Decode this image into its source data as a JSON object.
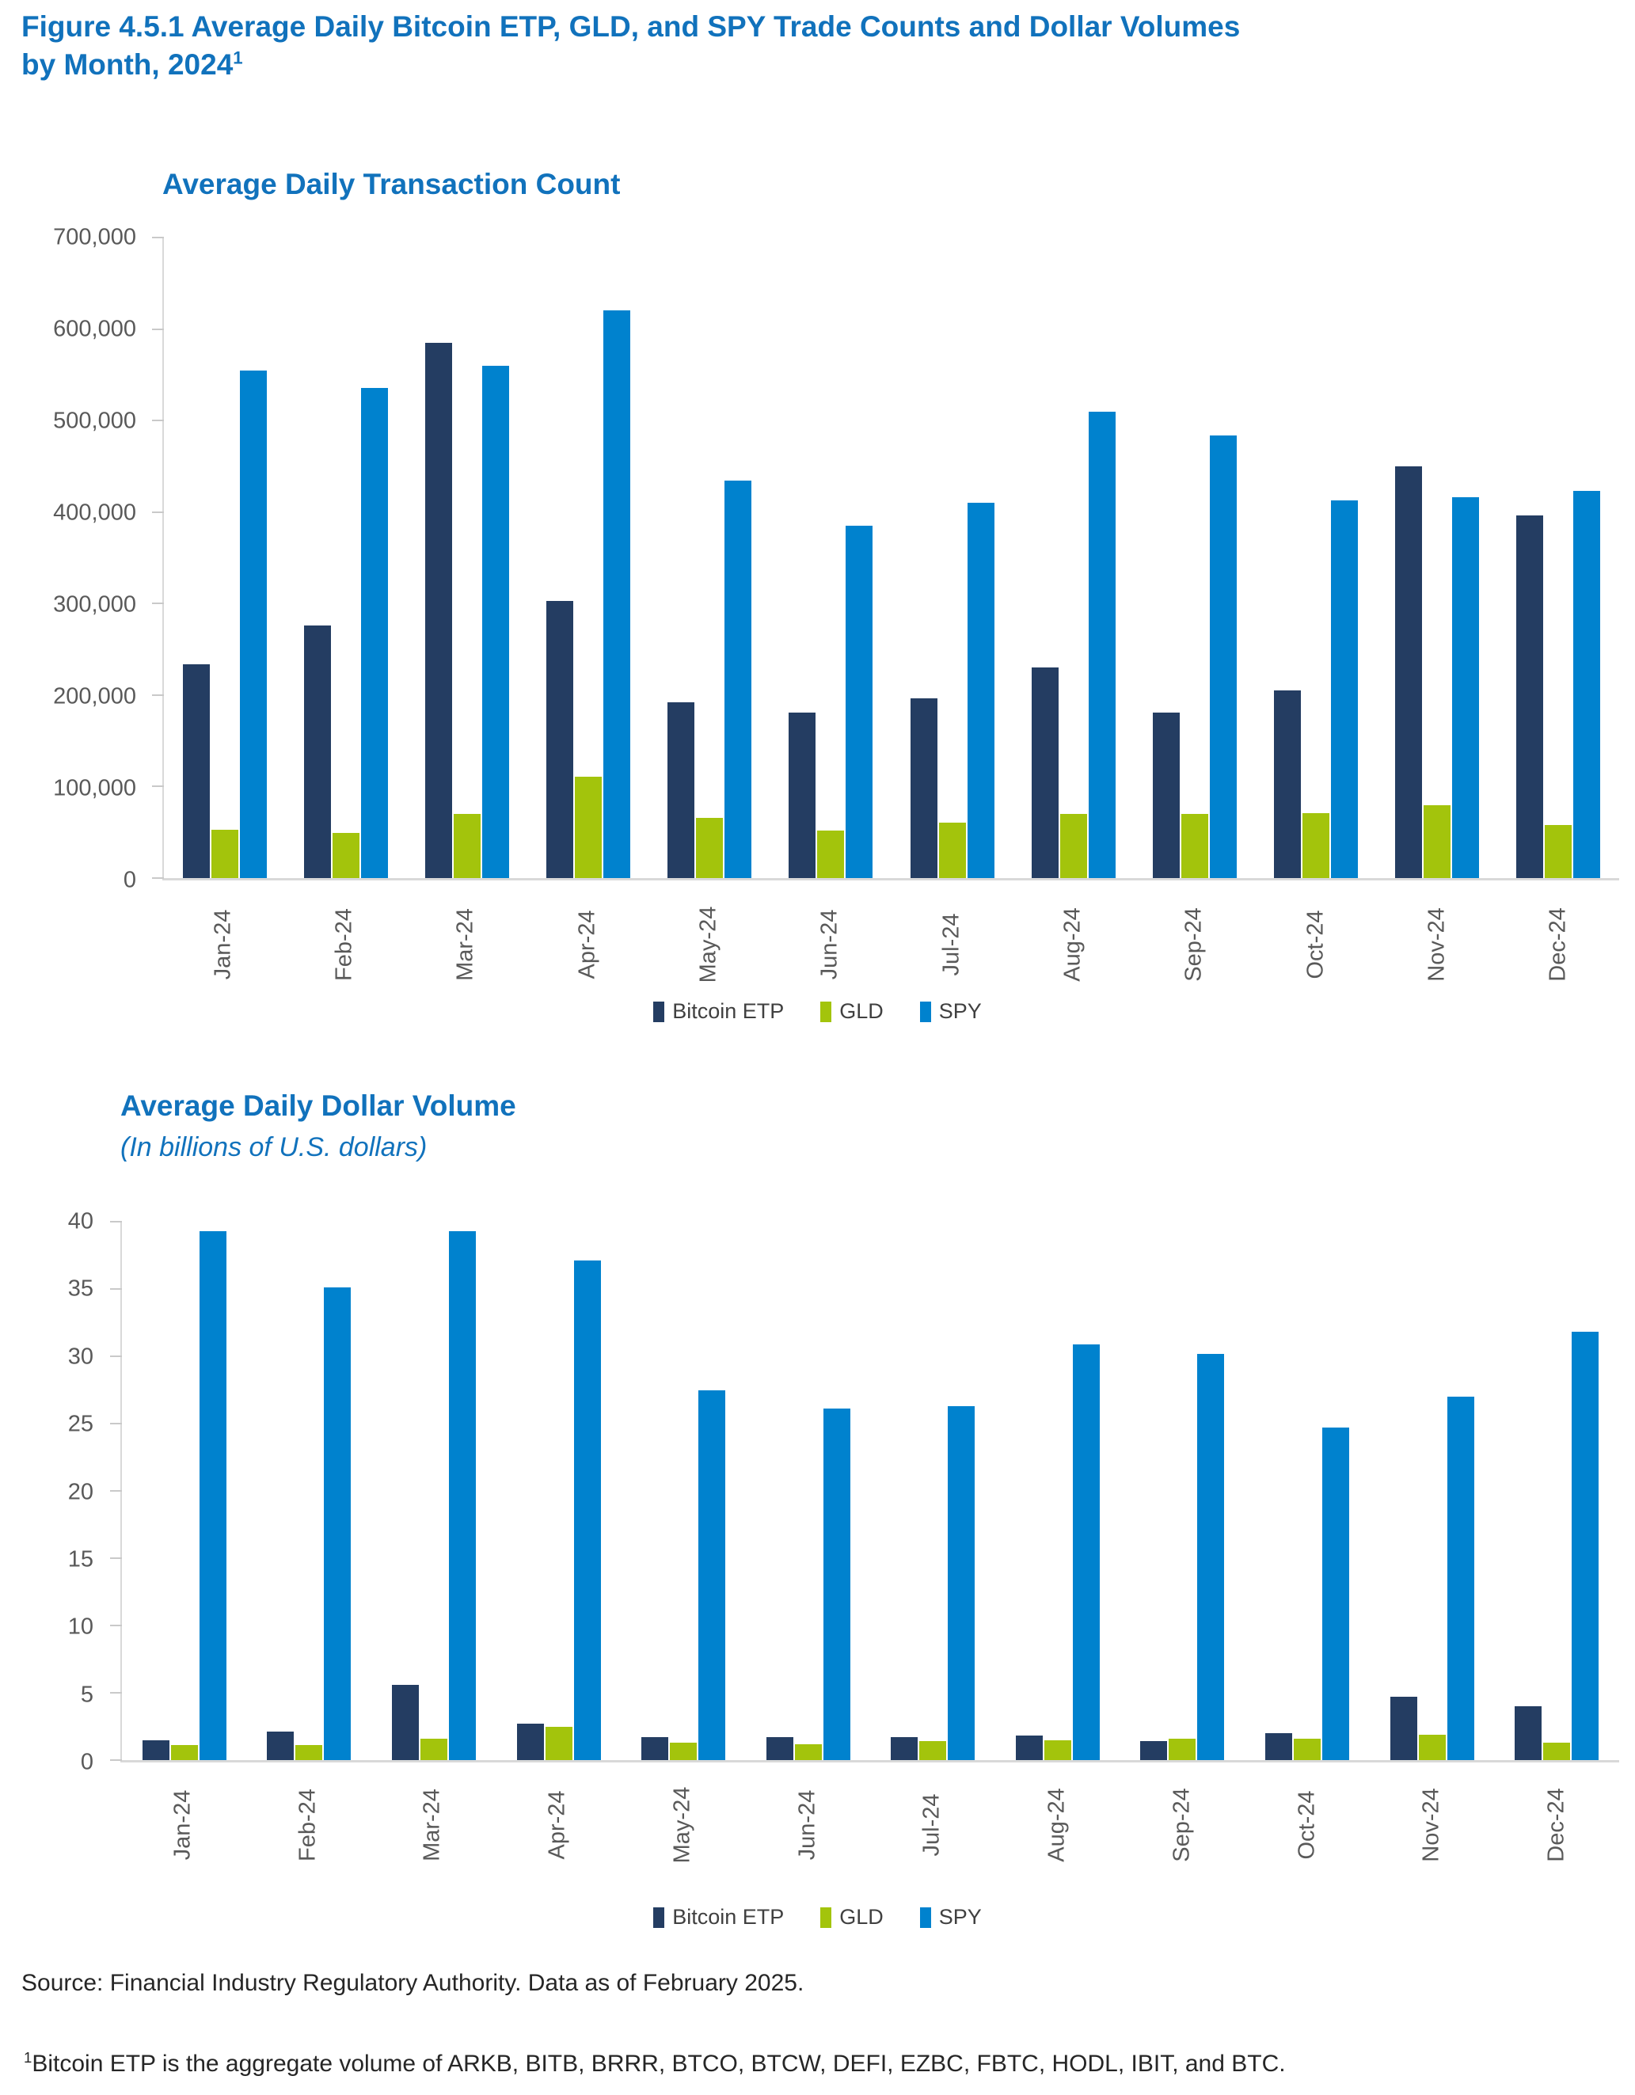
{
  "figure_title": "Figure 4.5.1 Average Daily Bitcoin ETP, GLD, and SPY Trade Counts and Dollar Volumes by Month, 2024",
  "figure_title_lines": [
    "Figure 4.5.1 Average Daily Bitcoin ETP, GLD, and SPY Trade Counts and Dollar Volumes",
    "by Month, 2024"
  ],
  "figure_title_sup": "1",
  "colors": {
    "title_blue": "#1172BC",
    "bitcoin_etp_navy": "#243D62",
    "gld_green": "#A3C40C",
    "spy_blue": "#0082CE",
    "axis_label_gray": "#595959",
    "axis_line_gray": "#D9D9D9",
    "legend_text_gray": "#404040"
  },
  "legend": {
    "items": [
      {
        "label": "Bitcoin ETP",
        "color": "#243D62"
      },
      {
        "label": "GLD",
        "color": "#A3C40C"
      },
      {
        "label": "SPY",
        "color": "#0082CE"
      }
    ]
  },
  "chart_data": [
    {
      "type": "bar",
      "title": "Average Daily Transaction Count",
      "subtitle": "",
      "categories": [
        "Jan-24",
        "Feb-24",
        "Mar-24",
        "Apr-24",
        "May-24",
        "Jun-24",
        "Jul-24",
        "Aug-24",
        "Sep-24",
        "Oct-24",
        "Nov-24",
        "Dec-24"
      ],
      "series": [
        {
          "name": "Bitcoin ETP",
          "values": [
            234000,
            276000,
            585000,
            303000,
            192000,
            181000,
            196000,
            230000,
            181000,
            205000,
            450000,
            396000
          ]
        },
        {
          "name": "GLD",
          "values": [
            53000,
            49000,
            70000,
            111000,
            66000,
            52000,
            61000,
            70000,
            70000,
            71000,
            80000,
            58000
          ]
        },
        {
          "name": "SPY",
          "values": [
            555000,
            536000,
            560000,
            620000,
            434000,
            385000,
            410000,
            510000,
            484000,
            413000,
            416000,
            423000
          ]
        }
      ],
      "xlabel": "",
      "ylabel": "",
      "ylim": [
        0,
        700000
      ],
      "ytick_step": 100000,
      "ytick_format": "comma",
      "grid": false,
      "legend_position": "bottom"
    },
    {
      "type": "bar",
      "title": "Average Daily Dollar Volume",
      "subtitle": "(In billions of U.S. dollars)",
      "categories": [
        "Jan-24",
        "Feb-24",
        "Mar-24",
        "Apr-24",
        "May-24",
        "Jun-24",
        "Jul-24",
        "Aug-24",
        "Sep-24",
        "Oct-24",
        "Nov-24",
        "Dec-24"
      ],
      "series": [
        {
          "name": "Bitcoin ETP",
          "values": [
            1.5,
            2.1,
            5.6,
            2.7,
            1.7,
            1.7,
            1.7,
            1.8,
            1.4,
            2.0,
            4.7,
            4.0
          ]
        },
        {
          "name": "GLD",
          "values": [
            1.1,
            1.1,
            1.6,
            2.5,
            1.3,
            1.2,
            1.4,
            1.5,
            1.6,
            1.6,
            1.9,
            1.3
          ]
        },
        {
          "name": "SPY",
          "values": [
            39.3,
            35.1,
            39.3,
            37.1,
            27.5,
            26.1,
            26.3,
            30.9,
            30.2,
            24.7,
            27.0,
            31.8
          ]
        }
      ],
      "xlabel": "",
      "ylabel": "",
      "ylim": [
        0,
        40
      ],
      "ytick_step": 5,
      "ytick_format": "plain",
      "grid": false,
      "legend_position": "bottom"
    }
  ],
  "source": "Source: Financial Industry Regulatory Authority. Data as of February 2025.",
  "footnote_sup": "1",
  "footnote": "Bitcoin ETP is the aggregate volume of ARKB, BITB, BRRR, BTCO, BTCW, DEFI, EZBC, FBTC, HODL, IBIT, and BTC."
}
